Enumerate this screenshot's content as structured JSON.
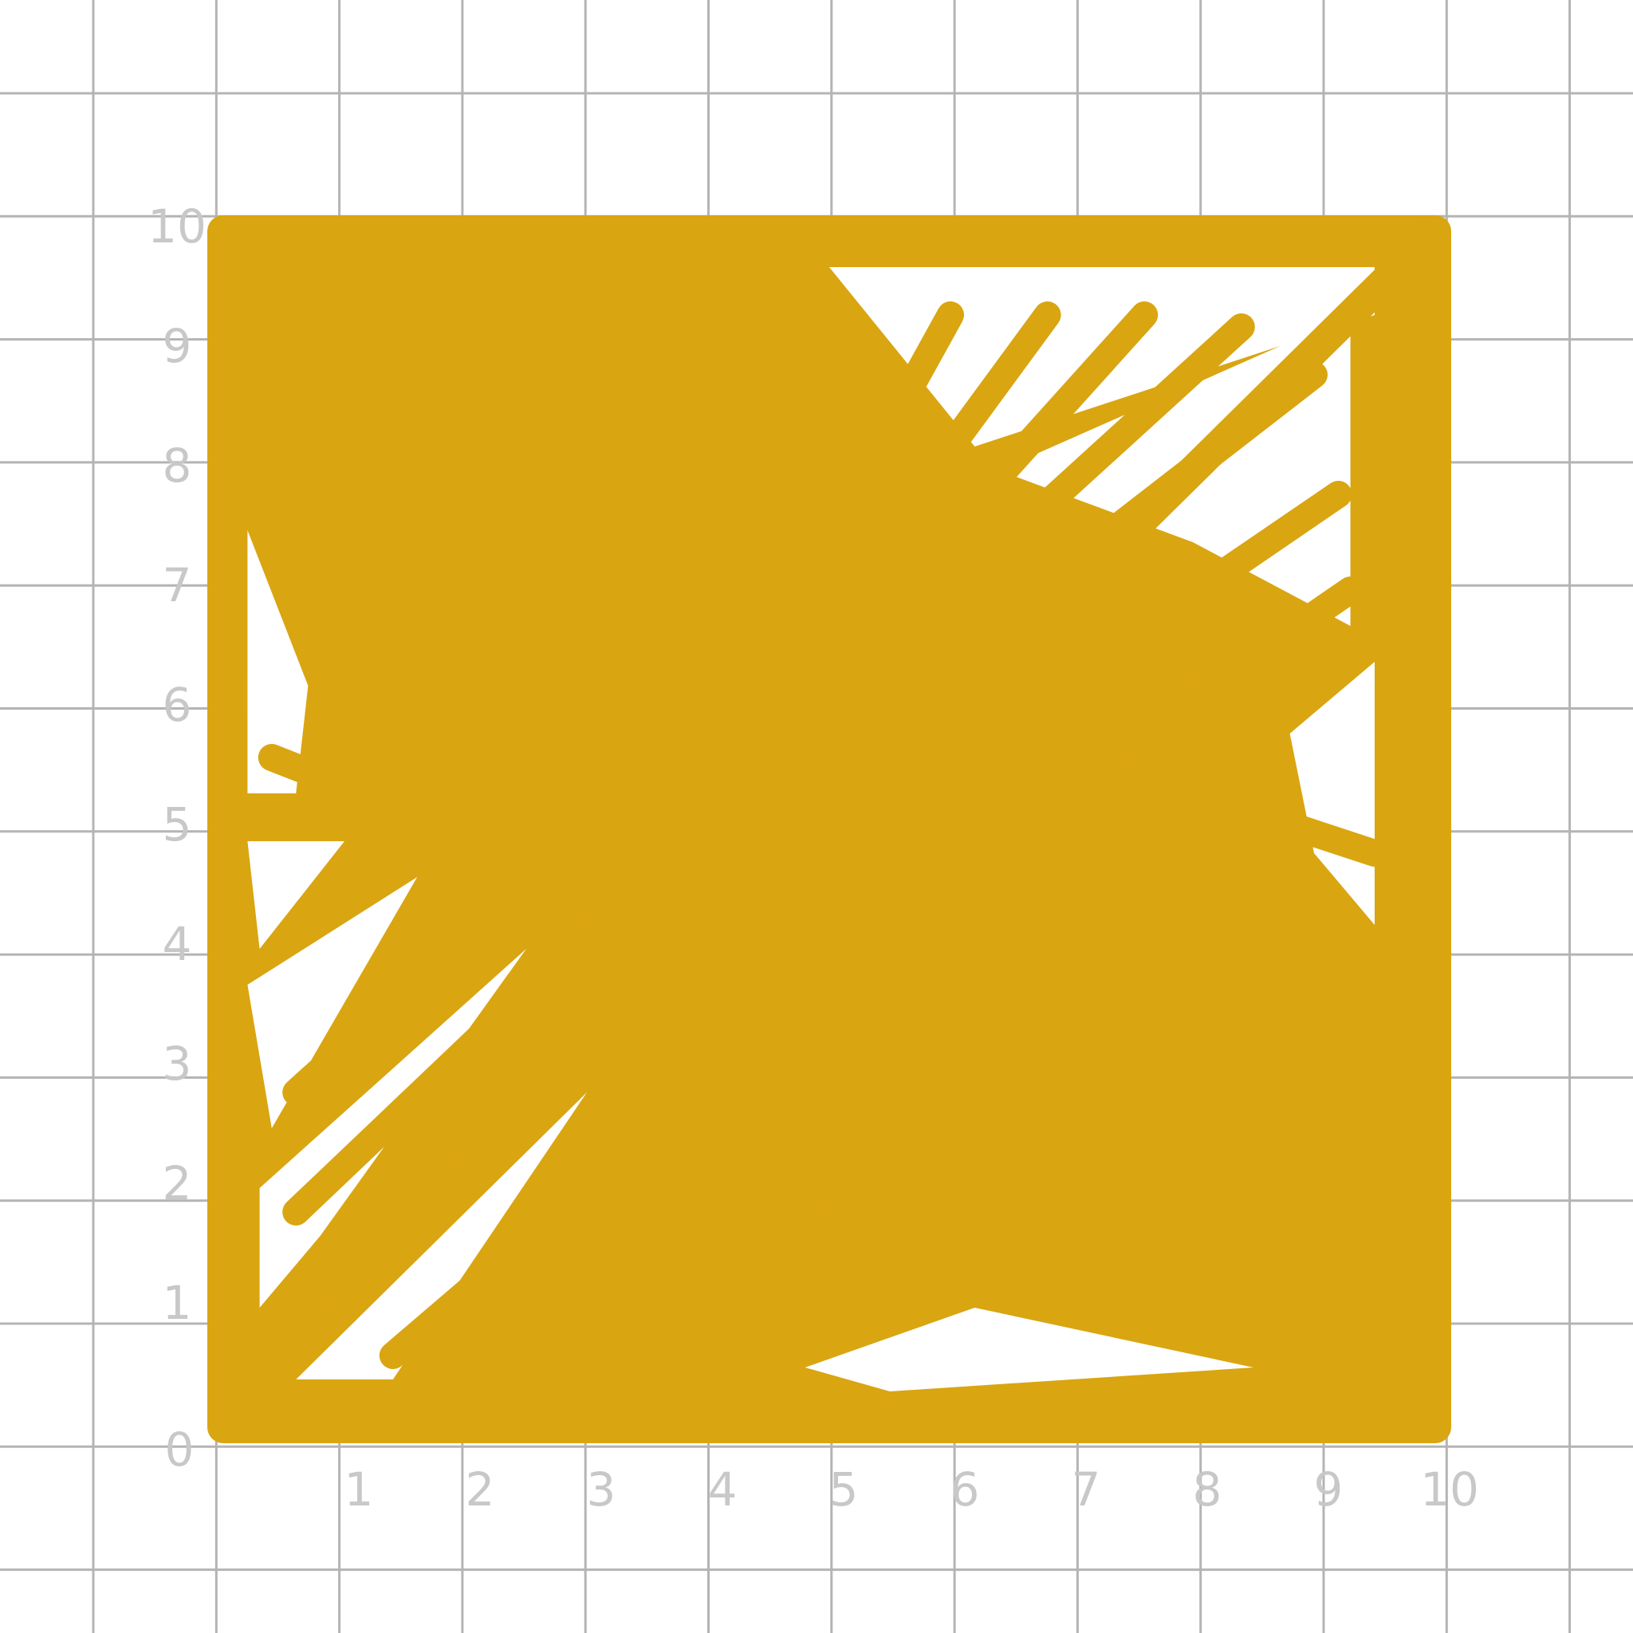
{
  "colors": {
    "background": "#ffffff",
    "grid": "#b4b4b4",
    "label": "#c8c8c8",
    "fill": "#d9a511"
  },
  "axes": {
    "x_ticks": [
      "0",
      "1",
      "2",
      "3",
      "4",
      "5",
      "6",
      "7",
      "8",
      "9",
      "10"
    ],
    "y_ticks": [
      "1",
      "2",
      "3",
      "4",
      "5",
      "6",
      "7",
      "8",
      "9",
      "10"
    ],
    "range": [
      0,
      10
    ]
  },
  "drawing": {
    "shape": "square",
    "corners": [
      [
        0,
        0
      ],
      [
        10,
        0
      ],
      [
        10,
        10
      ],
      [
        0,
        10
      ]
    ],
    "style": "crayon-scribble-fill",
    "diagonal": [
      [
        0,
        0
      ],
      [
        10,
        10
      ]
    ]
  }
}
